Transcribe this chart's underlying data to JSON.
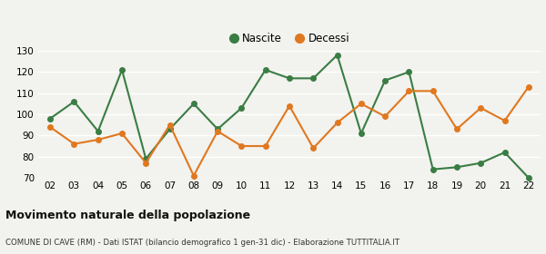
{
  "years": [
    "02",
    "03",
    "04",
    "05",
    "06",
    "07",
    "08",
    "09",
    "10",
    "11",
    "12",
    "13",
    "14",
    "15",
    "16",
    "17",
    "18",
    "19",
    "20",
    "21",
    "22"
  ],
  "nascite": [
    98,
    106,
    92,
    121,
    79,
    93,
    105,
    93,
    103,
    121,
    117,
    117,
    128,
    91,
    116,
    120,
    74,
    75,
    77,
    82,
    70
  ],
  "decessi": [
    94,
    86,
    88,
    91,
    77,
    95,
    71,
    92,
    85,
    85,
    104,
    84,
    96,
    105,
    99,
    111,
    111,
    93,
    103,
    97,
    113
  ],
  "nascite_color": "#3a7d44",
  "decessi_color": "#e07820",
  "bg_color": "#f2f2ee",
  "ylim": [
    70,
    130
  ],
  "yticks": [
    70,
    80,
    90,
    100,
    110,
    120,
    130
  ],
  "title": "Movimento naturale della popolazione",
  "subtitle": "COMUNE DI CAVE (RM) - Dati ISTAT (bilancio demografico 1 gen-31 dic) - Elaborazione TUTTITALIA.IT",
  "legend_nascite": "Nascite",
  "legend_decessi": "Decessi",
  "marker_size": 4,
  "line_width": 1.5
}
